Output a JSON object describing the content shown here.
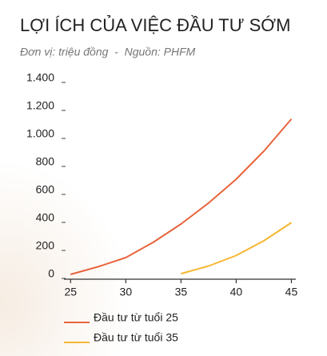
{
  "chart_data": {
    "type": "line",
    "title": "LỢI ÍCH CỦA VIỆC ĐẦU TƯ SỚM",
    "subtitle": "Đơn vị: triệu đồng  -  Nguồn: PHFM",
    "x": [
      25,
      27.5,
      30,
      32.5,
      35,
      37.5,
      40,
      42.5,
      45
    ],
    "series": [
      {
        "name": "Đầu tư từ tuổi 25",
        "color": "#e8643c",
        "values": [
          0,
          55,
          120,
          230,
          360,
          510,
          680,
          880,
          1110
        ]
      },
      {
        "name": "Đầu tư từ tuổi 35",
        "color": "#f5b731",
        "values": [
          null,
          null,
          null,
          null,
          5,
          60,
          135,
          240,
          370
        ]
      }
    ],
    "xlim": [
      24.4,
      45.4
    ],
    "xticks": [
      25,
      30,
      35,
      40,
      45
    ],
    "ylim": [
      0,
      1400
    ],
    "yticks": [
      0,
      200,
      400,
      600,
      800,
      {
        "value": 1000,
        "label": "1.000"
      },
      {
        "value": 1200,
        "label": "1.200"
      },
      {
        "value": 1400,
        "label": "1.400"
      }
    ]
  }
}
